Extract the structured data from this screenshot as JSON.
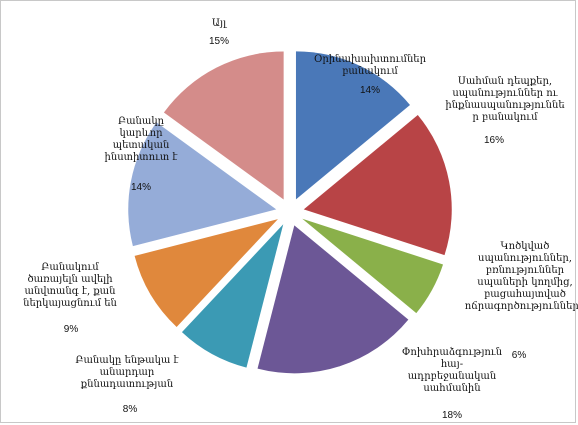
{
  "chart_data": {
    "type": "pie",
    "exploded": true,
    "slices": [
      {
        "label": "Օրինախախտումներ բանակում",
        "value": 14,
        "value_label": "14%",
        "color": "#4a78b8"
      },
      {
        "label": "Սահման դեպքեր, սպանություններ ու ինքնասպանություններ բանակում",
        "value": 16,
        "value_label": "16%",
        "color": "#b84446"
      },
      {
        "label": "Կոծկված սպանություններ, բռնություններ սպաների կողմից բացահայտված ոճրագործությունները",
        "value": 6,
        "value_label": "6%",
        "color": "#8ab04a"
      },
      {
        "label": "Փոխհրաձգություն հայ-ադրբեջանական սահմանին",
        "value": 18,
        "value_label": "18%",
        "color": "#6c5796"
      },
      {
        "label": "Բանակը ենթակա է անարդար քննադատության",
        "value": 8,
        "value_label": "8%",
        "color": "#3b9ab4"
      },
      {
        "label": "Բանակում ծառայելն ավելի անվտանգ է, քան ներկայացնում են",
        "value": 9,
        "value_label": "9%",
        "color": "#e0883c"
      },
      {
        "label": "Բանակը կարևոր պետական ինստիտուտ է",
        "value": 14,
        "value_label": "14%",
        "color": "#95acd8"
      },
      {
        "label": "Այլ",
        "value": 15,
        "value_label": "15%",
        "color": "#d48c8a"
      }
    ],
    "title": "",
    "legend": "none"
  }
}
